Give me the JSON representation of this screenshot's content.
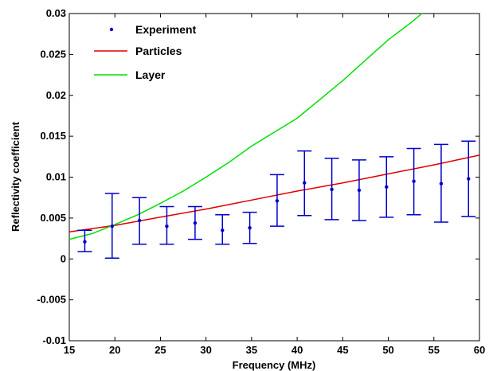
{
  "chart_data": {
    "type": "line",
    "xlabel": "Frequency (MHz)",
    "ylabel": "Reflectivity coefficient",
    "xlim": [
      15,
      60
    ],
    "ylim": [
      -0.01,
      0.03
    ],
    "xticks": [
      15,
      20,
      25,
      30,
      35,
      40,
      45,
      50,
      55,
      60
    ],
    "xtick_labels": [
      "15",
      "20",
      "25",
      "30",
      "35",
      "40",
      "45",
      "50",
      "55",
      "60"
    ],
    "yticks": [
      -0.01,
      -0.005,
      0,
      0.005,
      0.01,
      0.015,
      0.02,
      0.025,
      0.03
    ],
    "ytick_labels": [
      "-0.01",
      "-0.005",
      "0",
      "0.005",
      "0.01",
      "0.015",
      "0.02",
      "0.025",
      "0.03"
    ],
    "grid": false,
    "legend_position": "top-left",
    "series": [
      {
        "name": "Experiment",
        "kind": "errorbar",
        "color": "#0000cc",
        "points": [
          {
            "x": 16.7,
            "y": 0.0021,
            "lo": 0.0009,
            "hi": 0.0035
          },
          {
            "x": 19.7,
            "y": 0.004,
            "lo": 0.0001,
            "hi": 0.008
          },
          {
            "x": 22.7,
            "y": 0.0047,
            "lo": 0.0018,
            "hi": 0.0075
          },
          {
            "x": 25.7,
            "y": 0.004,
            "lo": 0.0018,
            "hi": 0.0064
          },
          {
            "x": 28.8,
            "y": 0.0044,
            "lo": 0.0024,
            "hi": 0.0064
          },
          {
            "x": 31.8,
            "y": 0.0035,
            "lo": 0.0018,
            "hi": 0.0054
          },
          {
            "x": 34.8,
            "y": 0.0038,
            "lo": 0.0019,
            "hi": 0.0057
          },
          {
            "x": 37.8,
            "y": 0.0071,
            "lo": 0.004,
            "hi": 0.0103
          },
          {
            "x": 40.8,
            "y": 0.0093,
            "lo": 0.0053,
            "hi": 0.0132
          },
          {
            "x": 43.8,
            "y": 0.0085,
            "lo": 0.0048,
            "hi": 0.0123
          },
          {
            "x": 46.8,
            "y": 0.0084,
            "lo": 0.0047,
            "hi": 0.0121
          },
          {
            "x": 49.8,
            "y": 0.0088,
            "lo": 0.0051,
            "hi": 0.0125
          },
          {
            "x": 52.8,
            "y": 0.0095,
            "lo": 0.0054,
            "hi": 0.0135
          },
          {
            "x": 55.8,
            "y": 0.0092,
            "lo": 0.0045,
            "hi": 0.014
          },
          {
            "x": 58.8,
            "y": 0.0098,
            "lo": 0.0052,
            "hi": 0.0144
          }
        ]
      },
      {
        "name": "Particles",
        "kind": "line",
        "color": "#e00000",
        "x": [
          15,
          20,
          25,
          30,
          35,
          40,
          45,
          50,
          55,
          60
        ],
        "y": [
          0.0033,
          0.0041,
          0.0051,
          0.0061,
          0.0072,
          0.0083,
          0.0093,
          0.0104,
          0.0115,
          0.0127
        ]
      },
      {
        "name": "Layer",
        "kind": "line",
        "color": "#00e000",
        "x": [
          15,
          17.5,
          20,
          22.5,
          25,
          27.5,
          30,
          32.5,
          35,
          37.5,
          40,
          42.5,
          45,
          47.5,
          50,
          52.5,
          54,
          55
        ],
        "y": [
          0.0024,
          0.0031,
          0.0042,
          0.0054,
          0.0068,
          0.0083,
          0.01,
          0.0118,
          0.0138,
          0.0155,
          0.0172,
          0.0195,
          0.0218,
          0.0243,
          0.0268,
          0.0289,
          0.0303,
          0.0312
        ]
      }
    ]
  }
}
